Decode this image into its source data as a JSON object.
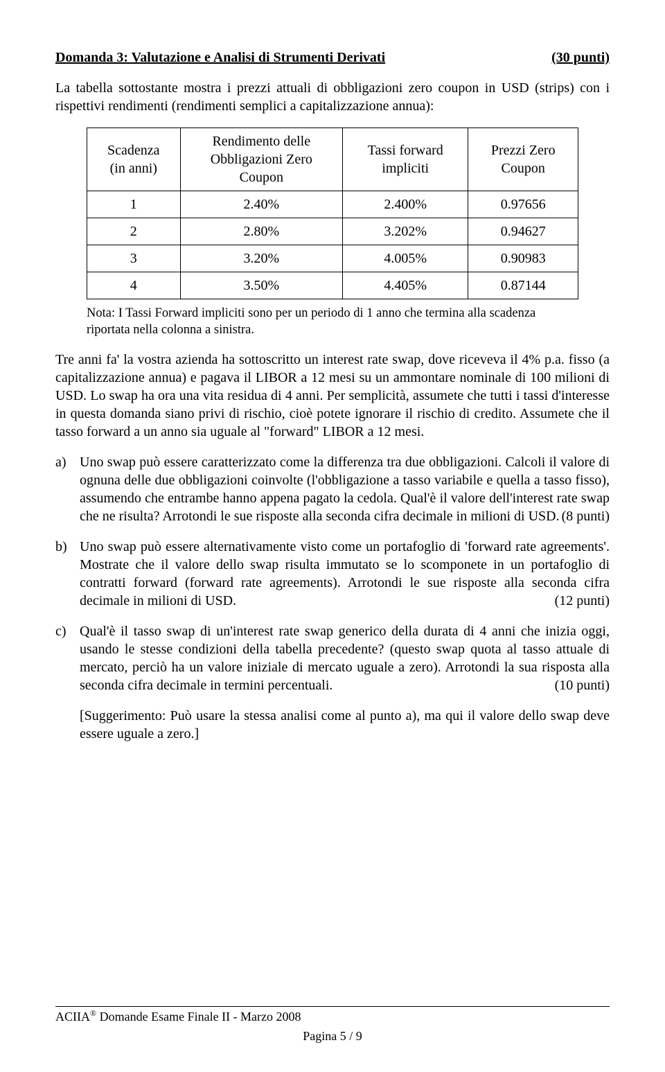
{
  "header": {
    "title": "Domanda 3:   Valutazione e Analisi di Strumenti Derivati",
    "points": "(30 punti)"
  },
  "intro": "La tabella sottostante mostra i prezzi attuali di obbligazioni zero coupon in USD (strips) con i rispettivi rendimenti (rendimenti semplici a capitalizzazione annua):",
  "table": {
    "headers": {
      "c0": "Scadenza\n(in anni)",
      "c1": "Rendimento delle\nObbligazioni Zero\nCoupon",
      "c2": "Tassi forward\nimpliciti",
      "c3": "Prezzi Zero\nCoupon"
    },
    "rows": [
      {
        "c0": "1",
        "c1": "2.40%",
        "c2": "2.400%",
        "c3": "0.97656"
      },
      {
        "c0": "2",
        "c1": "2.80%",
        "c2": "3.202%",
        "c3": "0.94627"
      },
      {
        "c0": "3",
        "c1": "3.20%",
        "c2": "4.005%",
        "c3": "0.90983"
      },
      {
        "c0": "4",
        "c1": "3.50%",
        "c2": "4.405%",
        "c3": "0.87144"
      }
    ],
    "note": "Nota: I Tassi Forward impliciti sono per un periodo di 1 anno che termina alla scadenza riportata nella colonna a sinistra."
  },
  "p1": "Tre anni fa' la vostra azienda ha sottoscritto un interest rate swap, dove riceveva il 4% p.a. fisso (a capitalizzazione annua) e pagava il LIBOR a 12 mesi su un ammontare nominale di 100 milioni di USD. Lo swap ha ora una vita residua di 4 anni. Per semplicità, assumete che tutti i tassi d'interesse in questa domanda siano privi di rischio, cioè potete ignorare il rischio di credito. Assumete che il tasso forward a un anno sia uguale al \"forward\" LIBOR a 12 mesi.",
  "a": {
    "letter": "a)",
    "text": "Uno swap può essere caratterizzato come la differenza tra due obbligazioni. Calcoli il valore di ognuna delle due obbligazioni coinvolte (l'obbligazione a tasso variabile e quella a tasso fisso), assumendo che entrambe hanno appena pagato la cedola. Qual'è il valore dell'interest rate swap che ne risulta? Arrotondi le sue risposte alla seconda cifra decimale in milioni di USD.",
    "pts": "(8 punti)"
  },
  "b": {
    "letter": "b)",
    "text": "Uno swap può essere alternativamente visto come un portafoglio di 'forward rate agreements'. Mostrate che il valore dello swap risulta immutato se lo scomponete in un portafoglio di contratti forward (forward rate agreements). Arrotondi le sue risposte alla seconda cifra decimale in milioni di USD.",
    "pts": "(12 punti)"
  },
  "c": {
    "letter": "c)",
    "text": "Qual'è il tasso swap di un'interest rate swap generico della durata di 4 anni che inizia oggi, usando le stesse condizioni della tabella precedente? (questo swap quota al tasso attuale di mercato, perciò ha un valore iniziale di mercato uguale a zero). Arrotondi la sua risposta alla seconda cifra decimale in termini percentuali.",
    "pts": "(10 punti)"
  },
  "suggestion": "[Suggerimento: Può usare la stessa analisi come al punto a), ma qui il valore dello swap deve essere uguale a zero.]",
  "footer": {
    "line1a": "ACIIA",
    "line1b": " Domande Esame Finale II - Marzo 2008",
    "reg": "®",
    "line2": "Pagina 5 / 9"
  }
}
